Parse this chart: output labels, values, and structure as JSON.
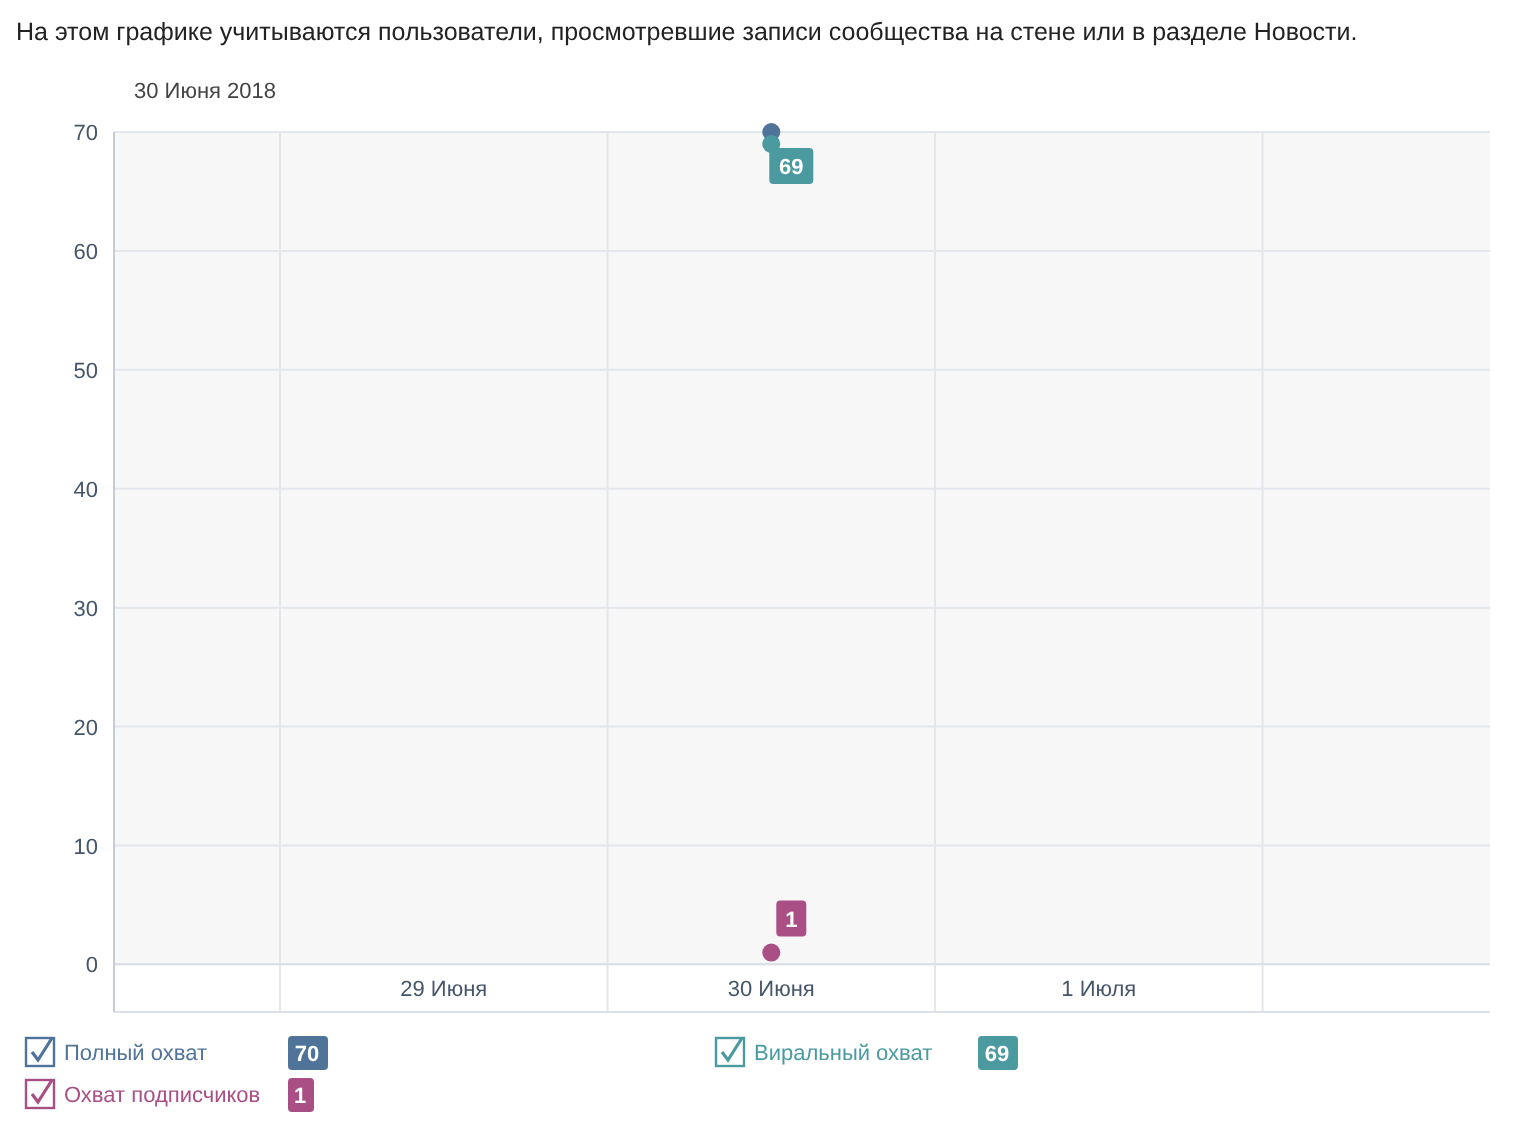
{
  "chart_data": {
    "type": "line",
    "subtitle": "На этом графике учитываются пользователи, просмотревшие записи сообщества на стене или в разделе Новости.",
    "annotations": [
      "30 Июня 2018",
      "70",
      "69",
      "1"
    ],
    "x": [
      "2018-06-30T12:00"
    ],
    "xlim": [
      "2018-06-28T11:50",
      "2018-07-02T16:40"
    ],
    "xticks": [
      {
        "value": "2018-06-29T12:00",
        "label": "29 Июня"
      },
      {
        "value": "2018-06-30T12:00",
        "label": "30 Июня"
      },
      {
        "value": "2018-07-01T12:00",
        "label": "1 Июля"
      }
    ],
    "ylim": [
      -4,
      70
    ],
    "yticks": [
      0,
      10,
      20,
      30,
      40,
      50,
      60,
      70
    ],
    "series": [
      {
        "name": "Полный охват",
        "color": "#4f7399",
        "values": [
          70
        ],
        "value_labels": [
          null
        ]
      },
      {
        "name": "Виральный охват",
        "color": "#4a9aa0",
        "values": [
          69
        ],
        "value_labels": [
          "69"
        ]
      },
      {
        "name": "Охват подписчиков",
        "color": "#a94f86",
        "values": [
          1
        ],
        "value_labels": [
          "1"
        ]
      }
    ],
    "marker": "circle",
    "grid": true,
    "legend": "bottom"
  }
}
